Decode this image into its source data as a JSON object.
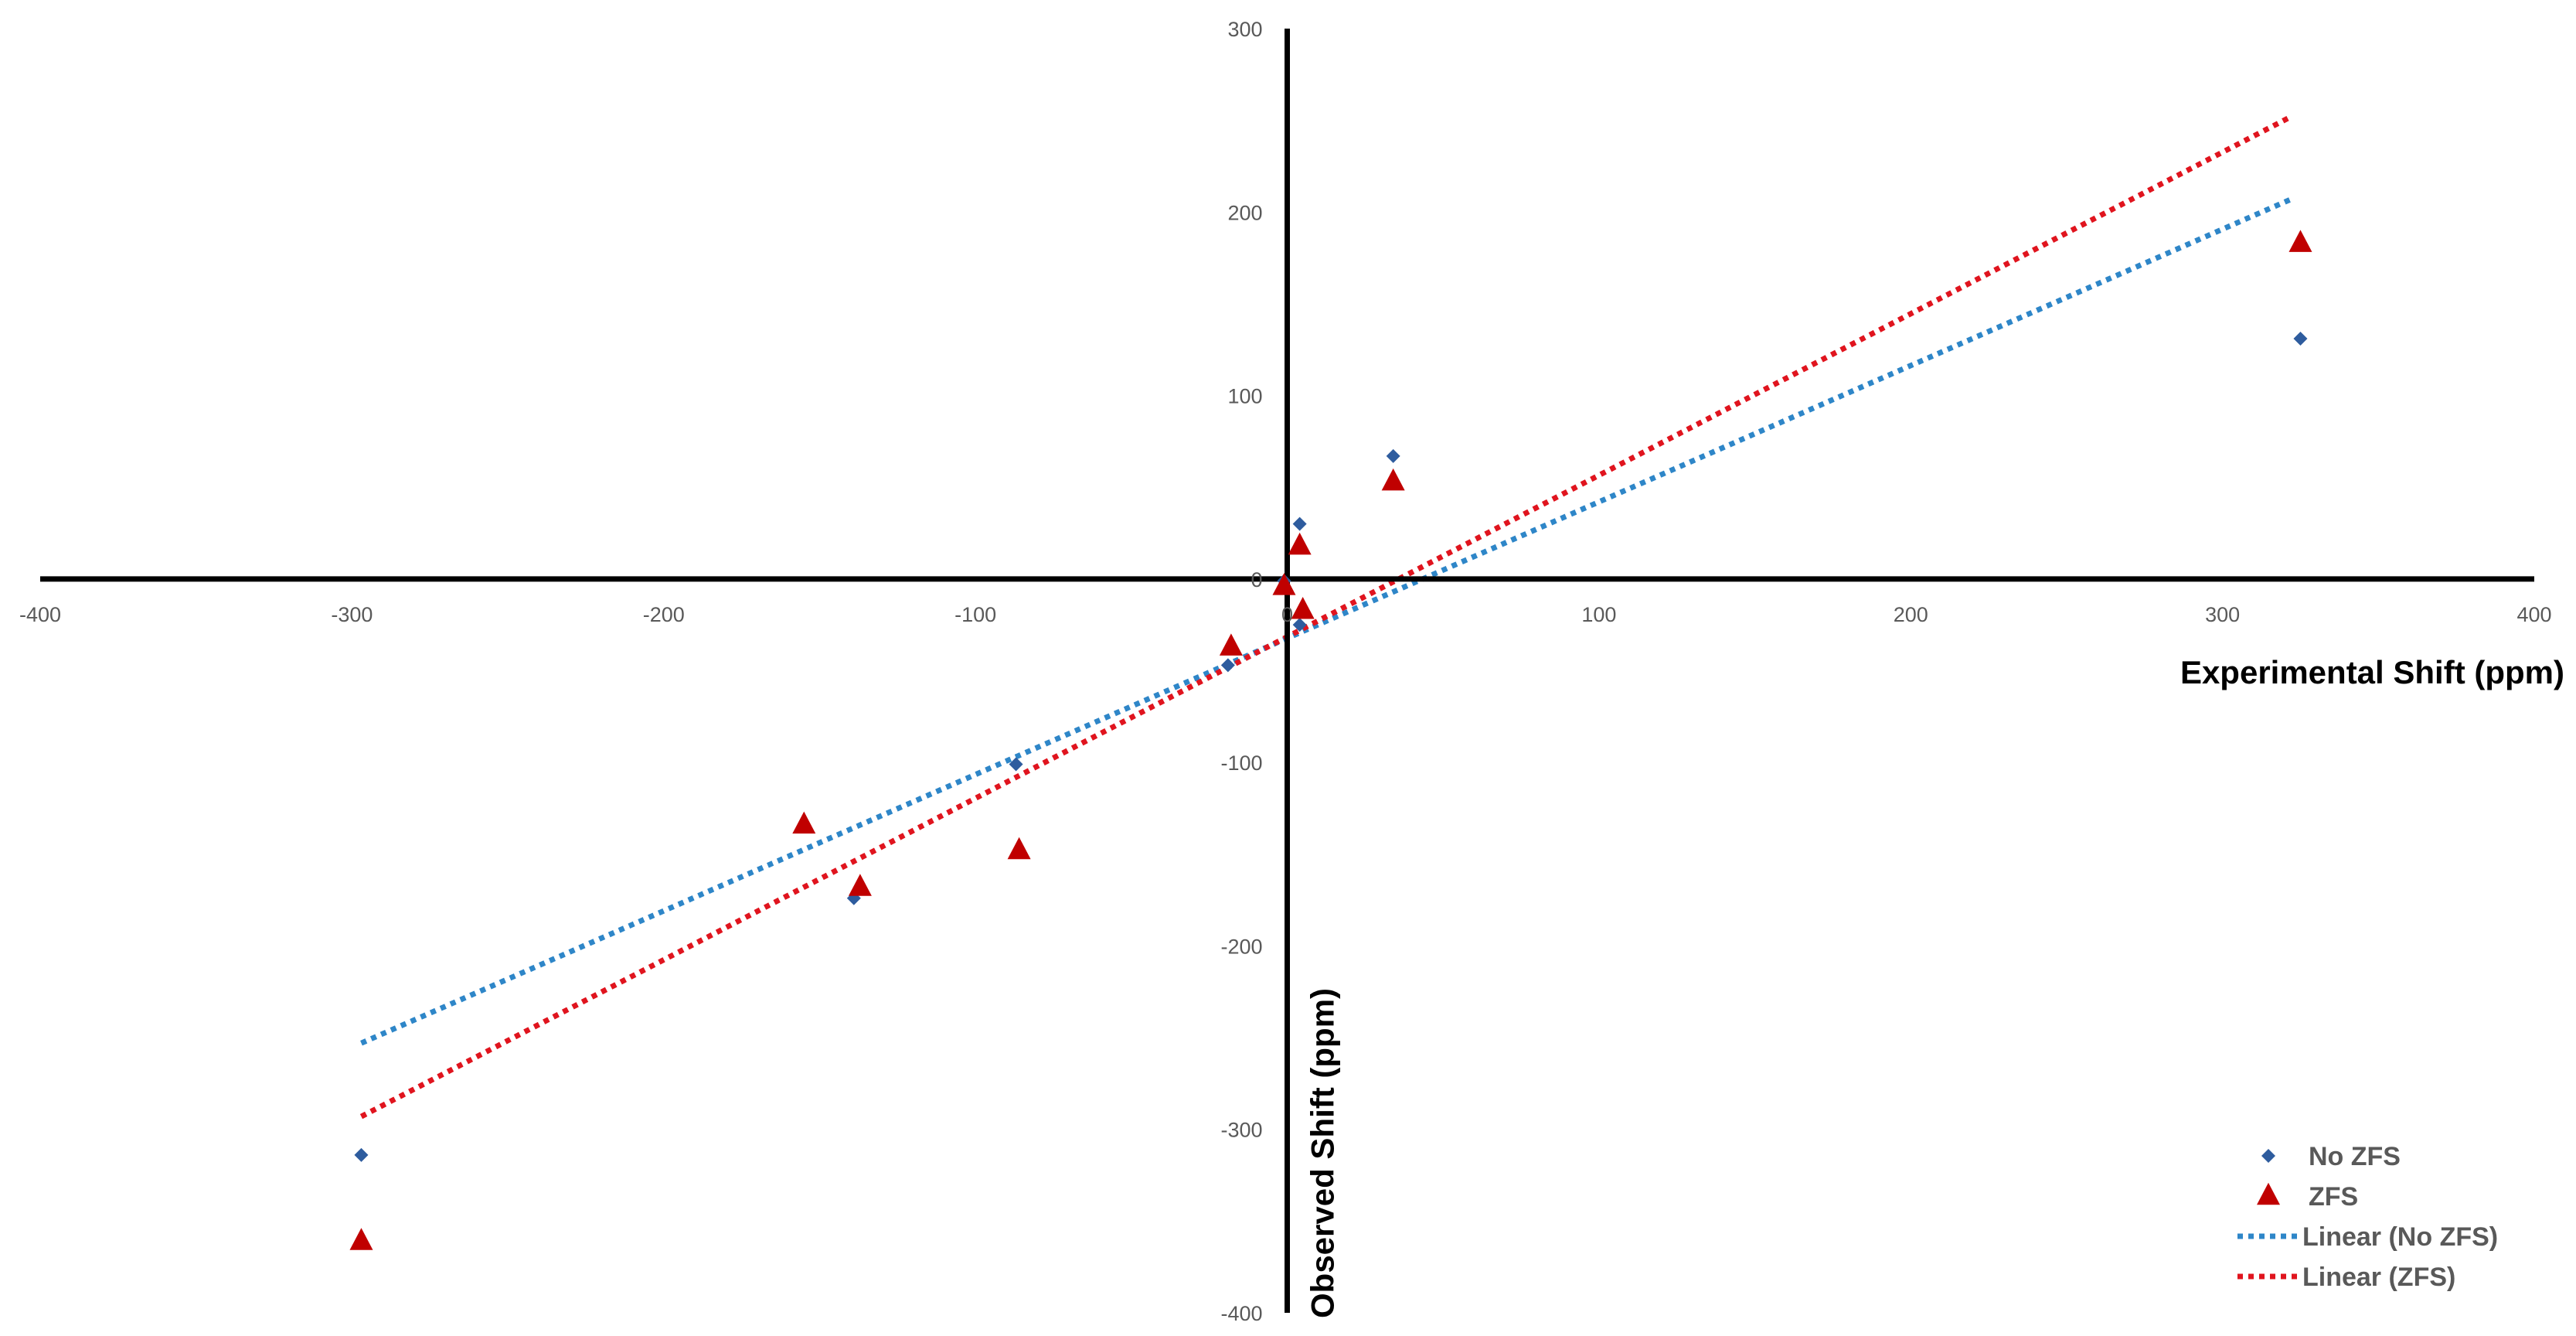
{
  "chart_data": {
    "type": "scatter",
    "xlabel": "Experimental Shift (ppm)",
    "ylabel": "Observed Shift (ppm)",
    "xlim": [
      -400,
      400
    ],
    "ylim": [
      -400,
      300
    ],
    "x_ticks": [
      -400,
      -300,
      -200,
      -100,
      0,
      100,
      200,
      300,
      400
    ],
    "y_ticks": [
      -400,
      -300,
      -200,
      -100,
      0,
      100,
      200,
      300
    ],
    "x_tick_labels": [
      "-400",
      "-300",
      "-200",
      "-100",
      "0",
      "100",
      "200",
      "300",
      "400"
    ],
    "y_tick_labels": [
      "-400",
      "-300",
      "-200",
      "-100",
      "0",
      "100",
      "200",
      "300"
    ],
    "grid": false,
    "legend_position": "bottom-right",
    "series": [
      {
        "name": "No ZFS",
        "marker": "diamond",
        "color": "#2E5C9E",
        "points": [
          [
            -297,
            -314
          ],
          [
            -139,
            -174
          ],
          [
            -87,
            -101
          ],
          [
            -19,
            -47
          ],
          [
            -1,
            -1
          ],
          [
            4,
            30
          ],
          [
            4,
            -25
          ],
          [
            34,
            67
          ],
          [
            325,
            131
          ]
        ]
      },
      {
        "name": "ZFS",
        "marker": "triangle",
        "color": "#C00000",
        "points": [
          [
            -297,
            -361
          ],
          [
            -155,
            -134
          ],
          [
            -137,
            -168
          ],
          [
            -86,
            -148
          ],
          [
            -18,
            -37
          ],
          [
            -1,
            -4
          ],
          [
            4,
            18
          ],
          [
            5,
            -17
          ],
          [
            34,
            53
          ],
          [
            325,
            183
          ]
        ]
      }
    ],
    "trendlines": [
      {
        "name": "Linear (No ZFS)",
        "style": "dotted",
        "color": "#2E86C8",
        "x_range": [
          -297,
          322
        ],
        "y_range": [
          -253,
          207
        ]
      },
      {
        "name": "Linear (ZFS)",
        "style": "dotted",
        "color": "#E0141E",
        "x_range": [
          -297,
          322
        ],
        "y_range": [
          -293,
          252
        ]
      }
    ],
    "legend": [
      "No ZFS",
      "ZFS",
      "Linear (No ZFS)",
      "Linear (ZFS)"
    ]
  }
}
